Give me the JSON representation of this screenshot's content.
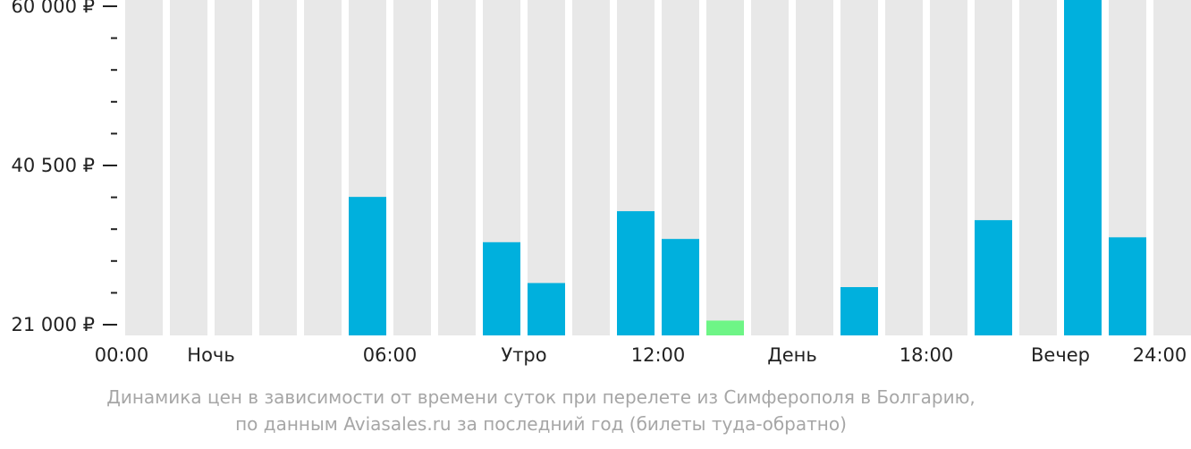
{
  "chart_data": {
    "type": "bar",
    "categories": [
      "00",
      "01",
      "02",
      "03",
      "04",
      "05",
      "06",
      "07",
      "08",
      "09",
      "10",
      "11",
      "12",
      "13",
      "14",
      "15",
      "16",
      "17",
      "18",
      "19",
      "20",
      "21",
      "22",
      "23"
    ],
    "values": [
      null,
      null,
      null,
      null,
      null,
      36650,
      null,
      null,
      31100,
      26100,
      null,
      34900,
      31500,
      21500,
      null,
      null,
      25600,
      null,
      null,
      33800,
      null,
      61000,
      31700,
      null
    ],
    "highlight_index": 13,
    "ylim": [
      21000,
      60000
    ],
    "y_ticks": [
      {
        "value": 60000,
        "label": "60 000 ₽"
      },
      {
        "value": 40500,
        "label": "40 500 ₽"
      },
      {
        "value": 21000,
        "label": "21 000 ₽"
      }
    ],
    "x_labels": [
      {
        "pos": 0,
        "label": "00:00"
      },
      {
        "pos": 2,
        "label": "Ночь"
      },
      {
        "pos": 6,
        "label": "06:00"
      },
      {
        "pos": 9,
        "label": "Утро"
      },
      {
        "pos": 12,
        "label": "12:00"
      },
      {
        "pos": 15,
        "label": "День"
      },
      {
        "pos": 18,
        "label": "18:00"
      },
      {
        "pos": 21,
        "label": "Вечер"
      },
      {
        "pos": 24,
        "label": "24:00"
      }
    ],
    "colors": {
      "bar": "#00b0dd",
      "highlight": "#6ef586",
      "background": "#e8e8e8",
      "text": "#222222",
      "caption": "#a6a6a6"
    }
  },
  "caption": {
    "line1": "Динамика цен в зависимости от времени суток при перелете из Симферополя в Болгарию,",
    "line2": "по данным Aviasales.ru за последний год (билеты туда-обратно)"
  }
}
